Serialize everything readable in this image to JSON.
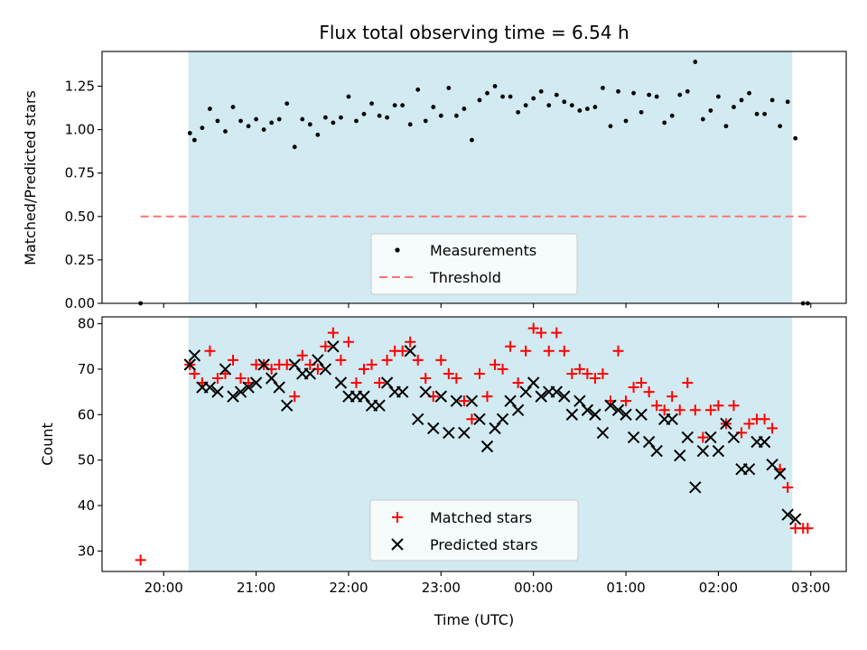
{
  "title": "Flux total observing time = 6.54 h",
  "colors": {
    "shade": "#add8e6",
    "threshold": "#ff7373",
    "matched": "#ff0000",
    "predicted": "#000000",
    "measurement": "#000000"
  },
  "chart_data": [
    {
      "type": "scatter",
      "title": "Flux total observing time = 6.54 h",
      "xlabel": "",
      "ylabel": "Matched/Predicted stars",
      "xlim": [
        "19:20",
        "03:23"
      ],
      "ylim": [
        0,
        1.45
      ],
      "x_ticks": [
        "20:00",
        "21:00",
        "22:00",
        "23:00",
        "00:00",
        "01:00",
        "02:00",
        "03:00"
      ],
      "y_ticks": [
        "0.00",
        "0.25",
        "0.50",
        "0.75",
        "1.00",
        "1.25"
      ],
      "shaded_interval": [
        "20:16",
        "02:48"
      ],
      "legend_position": "lower center",
      "series": [
        {
          "name": "Measurements",
          "marker": "dot",
          "points": [
            [
              "19:45",
              0.0
            ],
            [
              "20:17",
              0.98
            ],
            [
              "20:20",
              0.94
            ],
            [
              "20:25",
              1.01
            ],
            [
              "20:30",
              1.12
            ],
            [
              "20:35",
              1.05
            ],
            [
              "20:40",
              0.99
            ],
            [
              "20:45",
              1.13
            ],
            [
              "20:50",
              1.05
            ],
            [
              "20:55",
              1.02
            ],
            [
              "21:00",
              1.06
            ],
            [
              "21:05",
              1.0
            ],
            [
              "21:10",
              1.04
            ],
            [
              "21:15",
              1.06
            ],
            [
              "21:20",
              1.15
            ],
            [
              "21:25",
              0.9
            ],
            [
              "21:30",
              1.06
            ],
            [
              "21:35",
              1.03
            ],
            [
              "21:40",
              0.97
            ],
            [
              "21:45",
              1.07
            ],
            [
              "21:50",
              1.04
            ],
            [
              "21:55",
              1.07
            ],
            [
              "22:00",
              1.19
            ],
            [
              "22:05",
              1.05
            ],
            [
              "22:10",
              1.09
            ],
            [
              "22:15",
              1.15
            ],
            [
              "22:20",
              1.08
            ],
            [
              "22:25",
              1.07
            ],
            [
              "22:30",
              1.14
            ],
            [
              "22:35",
              1.14
            ],
            [
              "22:40",
              1.03
            ],
            [
              "22:45",
              1.23
            ],
            [
              "22:50",
              1.05
            ],
            [
              "22:55",
              1.13
            ],
            [
              "23:00",
              1.08
            ],
            [
              "23:05",
              1.24
            ],
            [
              "23:10",
              1.08
            ],
            [
              "23:15",
              1.12
            ],
            [
              "23:20",
              0.94
            ],
            [
              "23:25",
              1.17
            ],
            [
              "23:30",
              1.21
            ],
            [
              "23:35",
              1.25
            ],
            [
              "23:40",
              1.19
            ],
            [
              "23:45",
              1.19
            ],
            [
              "23:50",
              1.1
            ],
            [
              "23:55",
              1.14
            ],
            [
              "00:00",
              1.18
            ],
            [
              "00:05",
              1.22
            ],
            [
              "00:10",
              1.14
            ],
            [
              "00:15",
              1.2
            ],
            [
              "00:20",
              1.16
            ],
            [
              "00:25",
              1.14
            ],
            [
              "00:30",
              1.11
            ],
            [
              "00:35",
              1.12
            ],
            [
              "00:40",
              1.13
            ],
            [
              "00:45",
              1.24
            ],
            [
              "00:50",
              1.02
            ],
            [
              "00:55",
              1.22
            ],
            [
              "01:00",
              1.05
            ],
            [
              "01:05",
              1.21
            ],
            [
              "01:10",
              1.1
            ],
            [
              "01:15",
              1.2
            ],
            [
              "01:20",
              1.19
            ],
            [
              "01:25",
              1.04
            ],
            [
              "01:30",
              1.08
            ],
            [
              "01:35",
              1.2
            ],
            [
              "01:40",
              1.22
            ],
            [
              "01:45",
              1.39
            ],
            [
              "01:50",
              1.06
            ],
            [
              "01:55",
              1.11
            ],
            [
              "02:00",
              1.19
            ],
            [
              "02:05",
              1.02
            ],
            [
              "02:10",
              1.13
            ],
            [
              "02:15",
              1.17
            ],
            [
              "02:20",
              1.21
            ],
            [
              "02:25",
              1.09
            ],
            [
              "02:30",
              1.09
            ],
            [
              "02:35",
              1.17
            ],
            [
              "02:40",
              1.02
            ],
            [
              "02:45",
              1.16
            ],
            [
              "02:50",
              0.95
            ],
            [
              "02:55",
              0.0
            ],
            [
              "02:58",
              0.0
            ]
          ]
        },
        {
          "name": "Threshold",
          "style": "dashed-line",
          "y": 0.5,
          "x_range": [
            "19:45",
            "02:58"
          ]
        }
      ]
    },
    {
      "type": "scatter",
      "title": "",
      "xlabel": "Time (UTC)",
      "ylabel": "Count",
      "xlim": [
        "19:20",
        "03:23"
      ],
      "ylim": [
        25.5,
        81.5
      ],
      "x_ticks": [
        "20:00",
        "21:00",
        "22:00",
        "23:00",
        "00:00",
        "01:00",
        "02:00",
        "03:00"
      ],
      "y_ticks": [
        "30",
        "40",
        "50",
        "60",
        "70",
        "80"
      ],
      "shaded_interval": [
        "20:16",
        "02:48"
      ],
      "legend_position": "lower center",
      "series": [
        {
          "name": "Matched stars",
          "marker": "plus",
          "points": [
            [
              "19:45",
              28
            ],
            [
              "20:17",
              71
            ],
            [
              "20:20",
              69
            ],
            [
              "20:25",
              67
            ],
            [
              "20:30",
              74
            ],
            [
              "20:35",
              68
            ],
            [
              "20:40",
              69
            ],
            [
              "20:45",
              72
            ],
            [
              "20:50",
              68
            ],
            [
              "20:55",
              67
            ],
            [
              "21:00",
              71
            ],
            [
              "21:05",
              71
            ],
            [
              "21:10",
              70
            ],
            [
              "21:15",
              71
            ],
            [
              "21:20",
              71
            ],
            [
              "21:25",
              64
            ],
            [
              "21:30",
              73
            ],
            [
              "21:35",
              71
            ],
            [
              "21:40",
              70
            ],
            [
              "21:45",
              75
            ],
            [
              "21:50",
              78
            ],
            [
              "21:55",
              72
            ],
            [
              "22:00",
              76
            ],
            [
              "22:05",
              67
            ],
            [
              "22:10",
              70
            ],
            [
              "22:15",
              71
            ],
            [
              "22:20",
              67
            ],
            [
              "22:25",
              72
            ],
            [
              "22:30",
              74
            ],
            [
              "22:35",
              74
            ],
            [
              "22:40",
              76
            ],
            [
              "22:45",
              72
            ],
            [
              "22:50",
              68
            ],
            [
              "22:55",
              64
            ],
            [
              "23:00",
              72
            ],
            [
              "23:05",
              69
            ],
            [
              "23:10",
              68
            ],
            [
              "23:15",
              63
            ],
            [
              "23:20",
              59
            ],
            [
              "23:25",
              69
            ],
            [
              "23:30",
              64
            ],
            [
              "23:35",
              71
            ],
            [
              "23:40",
              70
            ],
            [
              "23:45",
              75
            ],
            [
              "23:50",
              67
            ],
            [
              "23:55",
              74
            ],
            [
              "00:00",
              79
            ],
            [
              "00:05",
              78
            ],
            [
              "00:10",
              74
            ],
            [
              "00:15",
              78
            ],
            [
              "00:20",
              74
            ],
            [
              "00:25",
              69
            ],
            [
              "00:30",
              70
            ],
            [
              "00:35",
              69
            ],
            [
              "00:40",
              68
            ],
            [
              "00:45",
              69
            ],
            [
              "00:50",
              63
            ],
            [
              "00:55",
              74
            ],
            [
              "01:00",
              63
            ],
            [
              "01:05",
              66
            ],
            [
              "01:10",
              67
            ],
            [
              "01:15",
              65
            ],
            [
              "01:20",
              62
            ],
            [
              "01:25",
              61
            ],
            [
              "01:30",
              64
            ],
            [
              "01:35",
              61
            ],
            [
              "01:40",
              67
            ],
            [
              "01:45",
              61
            ],
            [
              "01:50",
              55
            ],
            [
              "01:55",
              61
            ],
            [
              "02:00",
              62
            ],
            [
              "02:05",
              58
            ],
            [
              "02:10",
              62
            ],
            [
              "02:15",
              56
            ],
            [
              "02:20",
              58
            ],
            [
              "02:25",
              59
            ],
            [
              "02:30",
              59
            ],
            [
              "02:35",
              57
            ],
            [
              "02:40",
              48
            ],
            [
              "02:45",
              44
            ],
            [
              "02:50",
              35
            ],
            [
              "02:55",
              35
            ],
            [
              "02:58",
              35
            ]
          ]
        },
        {
          "name": "Predicted stars",
          "marker": "x",
          "points": [
            [
              "20:17",
              71
            ],
            [
              "20:20",
              73
            ],
            [
              "20:25",
              66
            ],
            [
              "20:30",
              66
            ],
            [
              "20:35",
              65
            ],
            [
              "20:40",
              70
            ],
            [
              "20:45",
              64
            ],
            [
              "20:50",
              65
            ],
            [
              "20:55",
              66
            ],
            [
              "21:00",
              67
            ],
            [
              "21:05",
              71
            ],
            [
              "21:10",
              68
            ],
            [
              "21:15",
              66
            ],
            [
              "21:20",
              62
            ],
            [
              "21:25",
              71
            ],
            [
              "21:30",
              69
            ],
            [
              "21:35",
              69
            ],
            [
              "21:40",
              72
            ],
            [
              "21:45",
              70
            ],
            [
              "21:50",
              75
            ],
            [
              "21:55",
              67
            ],
            [
              "22:00",
              64
            ],
            [
              "22:05",
              64
            ],
            [
              "22:10",
              64
            ],
            [
              "22:15",
              62
            ],
            [
              "22:20",
              62
            ],
            [
              "22:25",
              67
            ],
            [
              "22:30",
              65
            ],
            [
              "22:35",
              65
            ],
            [
              "22:40",
              74
            ],
            [
              "22:45",
              59
            ],
            [
              "22:50",
              65
            ],
            [
              "22:55",
              57
            ],
            [
              "23:00",
              64
            ],
            [
              "23:05",
              56
            ],
            [
              "23:10",
              63
            ],
            [
              "23:15",
              56
            ],
            [
              "23:20",
              63
            ],
            [
              "23:25",
              59
            ],
            [
              "23:30",
              53
            ],
            [
              "23:35",
              57
            ],
            [
              "23:40",
              59
            ],
            [
              "23:45",
              63
            ],
            [
              "23:50",
              61
            ],
            [
              "23:55",
              65
            ],
            [
              "00:00",
              67
            ],
            [
              "00:05",
              64
            ],
            [
              "00:10",
              65
            ],
            [
              "00:15",
              65
            ],
            [
              "00:20",
              64
            ],
            [
              "00:25",
              60
            ],
            [
              "00:30",
              63
            ],
            [
              "00:35",
              61
            ],
            [
              "00:40",
              60
            ],
            [
              "00:45",
              56
            ],
            [
              "00:50",
              62
            ],
            [
              "00:55",
              61
            ],
            [
              "01:00",
              60
            ],
            [
              "01:05",
              55
            ],
            [
              "01:10",
              60
            ],
            [
              "01:15",
              54
            ],
            [
              "01:20",
              52
            ],
            [
              "01:25",
              59
            ],
            [
              "01:30",
              59
            ],
            [
              "01:35",
              51
            ],
            [
              "01:40",
              55
            ],
            [
              "01:45",
              44
            ],
            [
              "01:50",
              52
            ],
            [
              "01:55",
              55
            ],
            [
              "02:00",
              52
            ],
            [
              "02:05",
              58
            ],
            [
              "02:10",
              55
            ],
            [
              "02:15",
              48
            ],
            [
              "02:20",
              48
            ],
            [
              "02:25",
              54
            ],
            [
              "02:30",
              54
            ],
            [
              "02:35",
              49
            ],
            [
              "02:40",
              47
            ],
            [
              "02:45",
              38
            ],
            [
              "02:50",
              37
            ]
          ]
        }
      ]
    }
  ]
}
